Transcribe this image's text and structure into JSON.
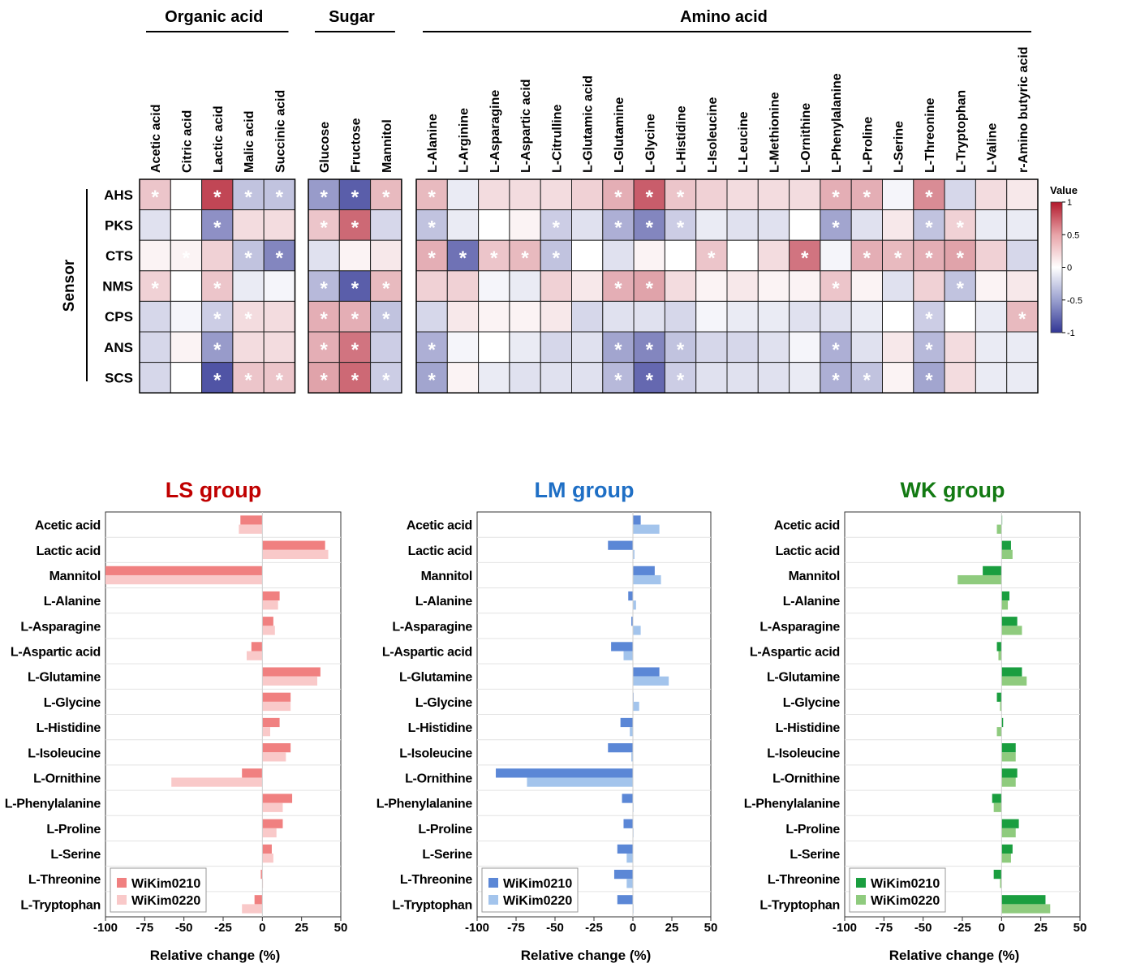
{
  "chart_data": [
    {
      "type": "heatmap",
      "title": "",
      "ylabel": "Sensor",
      "legend_title": "Value",
      "color_scale": {
        "min": -1,
        "max": 1,
        "ticks": [
          1,
          0.5,
          0,
          -0.5,
          -1
        ],
        "low_color": "#313695",
        "mid_color": "#ffffff",
        "high_color": "#b2182b"
      },
      "sensors": [
        "AHS",
        "PKS",
        "CTS",
        "NMS",
        "CPS",
        "ANS",
        "SCS"
      ],
      "groups": [
        {
          "name": "Organic acid",
          "columns": [
            "Acetic acid",
            "Citric acid",
            "Lactic acid",
            "Malic acid",
            "Succinic acid"
          ],
          "values": [
            [
              0.25,
              0.0,
              0.8,
              -0.3,
              -0.3
            ],
            [
              -0.15,
              0.0,
              -0.55,
              0.15,
              0.15
            ],
            [
              0.05,
              0.05,
              0.2,
              -0.3,
              -0.6
            ],
            [
              0.2,
              0.0,
              0.25,
              -0.1,
              -0.05
            ],
            [
              -0.2,
              -0.05,
              -0.25,
              0.15,
              0.15
            ],
            [
              -0.2,
              0.05,
              -0.5,
              0.15,
              0.15
            ],
            [
              -0.2,
              0.0,
              -0.85,
              0.25,
              0.25
            ]
          ],
          "significant": [
            [
              true,
              true,
              true,
              true,
              true
            ],
            [
              false,
              false,
              true,
              false,
              false
            ],
            [
              false,
              true,
              false,
              true,
              true
            ],
            [
              true,
              false,
              true,
              false,
              false
            ],
            [
              false,
              false,
              true,
              true,
              false
            ],
            [
              false,
              false,
              true,
              false,
              false
            ],
            [
              false,
              true,
              true,
              true,
              true
            ]
          ]
        },
        {
          "name": "Sugar",
          "columns": [
            "Glucose",
            "Fructose",
            "Mannitol"
          ],
          "values": [
            [
              -0.5,
              -0.8,
              0.3
            ],
            [
              0.25,
              0.65,
              -0.2
            ],
            [
              -0.15,
              0.05,
              0.1
            ],
            [
              -0.35,
              -0.8,
              0.3
            ],
            [
              0.35,
              0.35,
              -0.3
            ],
            [
              0.35,
              0.6,
              -0.25
            ],
            [
              0.4,
              0.65,
              -0.25
            ]
          ],
          "significant": [
            [
              true,
              true,
              true
            ],
            [
              true,
              true,
              false
            ],
            [
              false,
              false,
              false
            ],
            [
              true,
              true,
              true
            ],
            [
              true,
              true,
              true
            ],
            [
              true,
              true,
              false
            ],
            [
              true,
              true,
              true
            ]
          ]
        },
        {
          "name": "Amino acid",
          "columns": [
            "L-Alanine",
            "L-Arginine",
            "L-Asparagine",
            "L-Aspartic acid",
            "L-Citrulline",
            "L-Glutamic acid",
            "L-Glutamine",
            "L-Glycine",
            "L-Histidine",
            "L-Isoleucine",
            "L-Leucine",
            "L-Methionine",
            "L-Ornithine",
            "L-Phenylalanine",
            "L-Proline",
            "L-Serine",
            "L-Threonine",
            "L-Tryptophan",
            "L-Valine",
            "r-Amino butyric acid"
          ],
          "values": [
            [
              0.3,
              -0.1,
              0.15,
              0.15,
              0.15,
              0.2,
              0.35,
              0.7,
              0.25,
              0.2,
              0.15,
              0.15,
              0.15,
              0.35,
              0.35,
              -0.05,
              0.5,
              -0.2,
              0.15,
              0.1
            ],
            [
              -0.3,
              -0.1,
              0.0,
              0.05,
              -0.25,
              -0.15,
              -0.4,
              -0.6,
              -0.25,
              -0.1,
              -0.15,
              -0.15,
              0.0,
              -0.45,
              -0.15,
              0.1,
              -0.3,
              0.2,
              -0.1,
              -0.1
            ],
            [
              0.35,
              -0.7,
              0.25,
              0.3,
              -0.3,
              0.0,
              -0.15,
              0.05,
              0.0,
              0.25,
              0.0,
              0.15,
              0.6,
              -0.05,
              0.35,
              0.3,
              0.35,
              0.4,
              0.2,
              -0.2
            ],
            [
              0.2,
              0.2,
              -0.05,
              -0.1,
              0.2,
              0.1,
              0.35,
              0.4,
              0.15,
              0.05,
              0.1,
              0.05,
              0.05,
              0.25,
              0.05,
              -0.15,
              0.2,
              -0.3,
              0.05,
              0.1
            ],
            [
              -0.2,
              0.1,
              0.05,
              0.05,
              0.1,
              -0.2,
              -0.15,
              -0.15,
              -0.2,
              -0.05,
              -0.1,
              -0.1,
              -0.15,
              -0.15,
              -0.1,
              0.0,
              -0.25,
              0.0,
              -0.1,
              0.3
            ],
            [
              -0.4,
              -0.05,
              0.0,
              -0.1,
              -0.2,
              -0.15,
              -0.45,
              -0.6,
              -0.3,
              -0.2,
              -0.2,
              -0.15,
              -0.05,
              -0.4,
              -0.15,
              0.1,
              -0.35,
              0.15,
              -0.1,
              -0.1
            ],
            [
              -0.45,
              0.05,
              -0.1,
              -0.15,
              -0.15,
              -0.15,
              -0.35,
              -0.75,
              -0.25,
              -0.15,
              -0.15,
              -0.15,
              -0.1,
              -0.4,
              -0.3,
              0.05,
              -0.45,
              0.15,
              -0.1,
              -0.1
            ]
          ],
          "significant": [
            [
              true,
              false,
              false,
              false,
              false,
              false,
              true,
              true,
              true,
              false,
              false,
              false,
              false,
              true,
              true,
              false,
              true,
              false,
              false,
              false
            ],
            [
              true,
              false,
              false,
              false,
              true,
              false,
              true,
              true,
              true,
              false,
              false,
              false,
              false,
              true,
              false,
              false,
              true,
              true,
              false,
              false
            ],
            [
              true,
              true,
              true,
              true,
              true,
              false,
              false,
              false,
              false,
              true,
              false,
              false,
              true,
              false,
              true,
              true,
              true,
              true,
              false,
              false
            ],
            [
              false,
              false,
              false,
              false,
              false,
              false,
              true,
              true,
              false,
              false,
              false,
              false,
              false,
              true,
              false,
              false,
              false,
              true,
              false,
              false
            ],
            [
              false,
              false,
              false,
              false,
              false,
              false,
              false,
              false,
              false,
              false,
              false,
              false,
              false,
              false,
              false,
              false,
              true,
              false,
              false,
              true
            ],
            [
              true,
              false,
              false,
              false,
              false,
              false,
              true,
              true,
              true,
              false,
              false,
              false,
              false,
              true,
              false,
              false,
              true,
              false,
              false,
              false
            ],
            [
              true,
              false,
              false,
              false,
              false,
              false,
              true,
              true,
              true,
              false,
              false,
              false,
              false,
              true,
              true,
              false,
              true,
              false,
              false,
              false
            ]
          ]
        }
      ]
    },
    {
      "type": "bar",
      "orientation": "horizontal",
      "title": "LS group",
      "title_color": "#c00000",
      "xlabel": "Relative change (%)",
      "xlim": [
        -100,
        50
      ],
      "xticks": [
        -100,
        -75,
        -50,
        -25,
        0,
        25,
        50
      ],
      "categories": [
        "Acetic acid",
        "Lactic acid",
        "Mannitol",
        "L-Alanine",
        "L-Asparagine",
        "L-Aspartic acid",
        "L-Glutamine",
        "L-Glycine",
        "L-Histidine",
        "L-Isoleucine",
        "L-Ornithine",
        "L-Phenylalanine",
        "L-Proline",
        "L-Serine",
        "L-Threonine",
        "L-Tryptophan"
      ],
      "legend_position": "bottom-left",
      "series": [
        {
          "name": "WiKim0210",
          "color": "#f08080",
          "values": [
            -14,
            40,
            -100,
            11,
            7,
            -7,
            37,
            18,
            11,
            18,
            -13,
            19,
            13,
            6,
            -1,
            -5
          ]
        },
        {
          "name": "WiKim0220",
          "color": "#f9c9c9",
          "values": [
            -15,
            42,
            -100,
            10,
            8,
            -10,
            35,
            18,
            5,
            15,
            -58,
            13,
            9,
            7,
            0,
            -13
          ]
        }
      ]
    },
    {
      "type": "bar",
      "orientation": "horizontal",
      "title": "LM group",
      "title_color": "#1f6fc5",
      "xlabel": "Relative change (%)",
      "xlim": [
        -100,
        50
      ],
      "xticks": [
        -100,
        -75,
        -50,
        -25,
        0,
        25,
        50
      ],
      "categories": [
        "Acetic acid",
        "Lactic acid",
        "Mannitol",
        "L-Alanine",
        "L-Asparagine",
        "L-Aspartic acid",
        "L-Glutamine",
        "L-Glycine",
        "L-Histidine",
        "L-Isoleucine",
        "L-Ornithine",
        "L-Phenylalanine",
        "L-Proline",
        "L-Serine",
        "L-Threonine",
        "L-Tryptophan"
      ],
      "legend_position": "bottom-left",
      "series": [
        {
          "name": "WiKim0210",
          "color": "#5b87d6",
          "values": [
            5,
            -16,
            14,
            -3,
            -1,
            -14,
            17,
            0,
            -8,
            -16,
            -88,
            -7,
            -6,
            -10,
            -12,
            -10
          ]
        },
        {
          "name": "WiKim0220",
          "color": "#a3c4ec",
          "values": [
            17,
            1,
            18,
            2,
            5,
            -6,
            23,
            4,
            -2,
            -1,
            -68,
            0,
            0,
            -4,
            -4,
            0
          ]
        }
      ]
    },
    {
      "type": "bar",
      "orientation": "horizontal",
      "title": "WK group",
      "title_color": "#137a13",
      "xlabel": "Relative change (%)",
      "xlim": [
        -100,
        50
      ],
      "xticks": [
        -100,
        -75,
        -50,
        -25,
        0,
        25,
        50
      ],
      "categories": [
        "Acetic acid",
        "Lactic acid",
        "Mannitol",
        "L-Alanine",
        "L-Asparagine",
        "L-Aspartic acid",
        "L-Glutamine",
        "L-Glycine",
        "L-Histidine",
        "L-Isoleucine",
        "L-Ornithine",
        "L-Phenylalanine",
        "L-Proline",
        "L-Serine",
        "L-Threonine",
        "L-Tryptophan"
      ],
      "legend_position": "bottom-left",
      "series": [
        {
          "name": "WiKim0210",
          "color": "#1a9e3f",
          "values": [
            0,
            6,
            -12,
            5,
            10,
            -3,
            13,
            -3,
            1,
            9,
            10,
            -6,
            11,
            7,
            -5,
            28
          ]
        },
        {
          "name": "WiKim0220",
          "color": "#8fcb7e",
          "values": [
            -3,
            7,
            -28,
            4,
            13,
            -2,
            16,
            -1,
            -3,
            9,
            9,
            -5,
            9,
            6,
            -1,
            31
          ]
        }
      ]
    }
  ]
}
